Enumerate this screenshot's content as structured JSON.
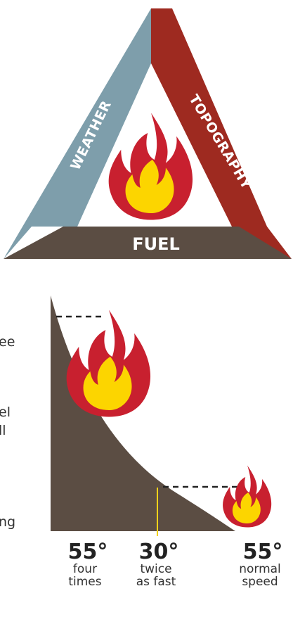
{
  "triangle": {
    "left": "WEATHER",
    "right": "TOPOGRAPHY",
    "base": "FUEL"
  },
  "left_fragments": [
    "ee",
    "el",
    "ll",
    "ng"
  ],
  "slope_labels": [
    {
      "degrees": "55°",
      "lines": [
        "four",
        "times"
      ]
    },
    {
      "degrees": "30°",
      "lines": [
        "twice",
        "as fast"
      ]
    },
    {
      "degrees": "55°",
      "lines": [
        "normal",
        "speed"
      ]
    }
  ]
}
